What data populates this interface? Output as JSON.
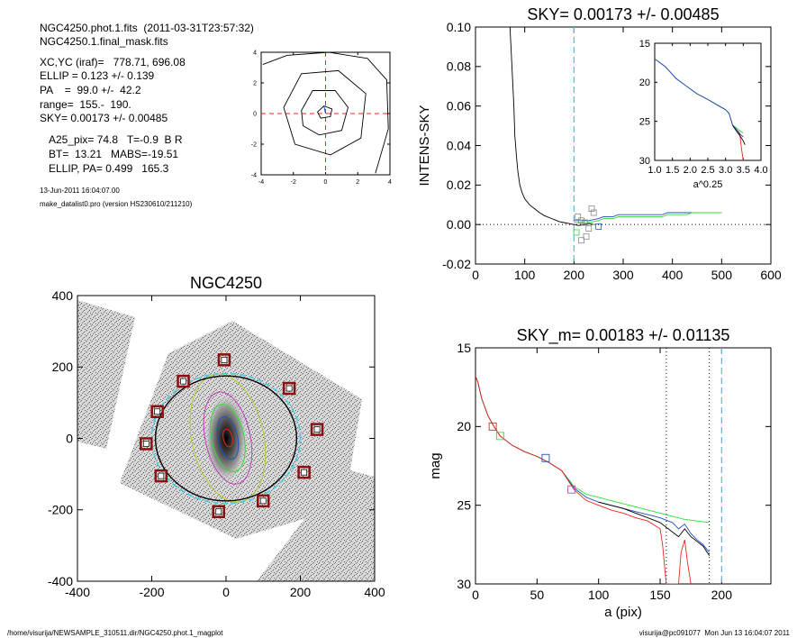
{
  "info": {
    "header_line1": "NGC4250.phot.1.fits  (2011-03-31T23:57:32)",
    "header_line2": "NGC4250.1.final_mask.fits",
    "center": "XC,YC (iraf)=   778.71, 696.08",
    "ellip": "ELLIP = 0.123 +/- 0.139",
    "pa": "PA    =  99.0 +/-  42.2",
    "range": "range=  155.-  190.",
    "sky": "SKY= 0.00173 +/- 0.00485",
    "a25": "A25_pix= 74.8   T=-0.9  B R",
    "bt": "BT=  13.21   MABS=-19.51",
    "ellip_pa": "ELLIP, PA= 0.499   165.3",
    "date": "13-Jun-2011 16:04:07.00",
    "program": "make_datalist0.pro (version HS230610/211210)"
  },
  "footer": {
    "path": "/home/visurija/NEWSAMPLE_310511.dir/NGC4250.phot.1_magplot",
    "user_date": "visurija@pc091077  Mon Jun 13 16:04:07 2011"
  },
  "colors": {
    "red": "#e8261c",
    "green": "#35d935",
    "blue": "#1f4fbf",
    "cyan": "#3ecfe0",
    "dark_red": "#8b1010",
    "magenta": "#c040c0",
    "yellow_green": "#b5cc33",
    "gray": "#888888"
  },
  "chart_data": [
    {
      "id": "contour_plot",
      "type": "contour",
      "title": "",
      "xlabel": "",
      "ylabel": "",
      "xlim": [
        -4,
        4
      ],
      "ylim": [
        -4,
        4
      ],
      "xticks": [
        -4,
        -2,
        0,
        2,
        4
      ],
      "yticks": [
        -4,
        -2,
        0,
        2,
        4
      ],
      "crosshair": {
        "x": 0,
        "y": 0,
        "color": "red-dashed"
      },
      "contours": [
        {
          "points": [
            [
              -0.5,
              0.1
            ],
            [
              -0.1,
              0.5
            ],
            [
              0.4,
              0.3
            ],
            [
              0.3,
              -0.2
            ],
            [
              -0.3,
              -0.3
            ]
          ]
        },
        {
          "points": [
            [
              -1.5,
              0.2
            ],
            [
              -0.8,
              1.5
            ],
            [
              0.6,
              1.5
            ],
            [
              1.4,
              0.4
            ],
            [
              1.0,
              -1.1
            ],
            [
              -0.4,
              -1.4
            ],
            [
              -1.4,
              -0.8
            ]
          ]
        },
        {
          "points": [
            [
              -2.6,
              0.4
            ],
            [
              -1.5,
              2.6
            ],
            [
              0.8,
              2.8
            ],
            [
              2.5,
              1.3
            ],
            [
              2.2,
              -1.6
            ],
            [
              0.3,
              -2.7
            ],
            [
              -1.9,
              -2.0
            ]
          ]
        },
        {
          "points": [
            [
              -3.9,
              3.2
            ],
            [
              -2.4,
              3.8
            ],
            [
              0.2,
              4.0
            ],
            [
              2.6,
              3.6
            ],
            [
              3.8,
              2.2
            ],
            [
              3.9,
              -1.0
            ],
            [
              3.1,
              -3.9
            ]
          ]
        }
      ]
    },
    {
      "id": "sky_profile",
      "type": "line",
      "title": "SKY= 0.00173 +/- 0.00485",
      "xlabel": "",
      "ylabel": "INTENS-SKY",
      "xlim": [
        0,
        600
      ],
      "ylim": [
        -0.02,
        0.1
      ],
      "xticks": [
        0,
        100,
        200,
        300,
        400,
        500,
        600
      ],
      "yticks": [
        "-0.02",
        "0.00",
        "0.02",
        "0.04",
        "0.06",
        "0.08",
        "0.10"
      ],
      "vline": {
        "x": 200,
        "style": "cyan-dashed"
      },
      "hline": {
        "y": 0,
        "style": "dotted"
      },
      "series": [
        {
          "color": "black",
          "x": [
            70,
            72,
            75,
            78,
            80,
            83,
            86,
            90,
            95,
            100,
            110,
            120,
            130,
            140,
            150,
            160,
            170,
            180,
            190,
            200,
            210,
            220,
            230,
            240
          ],
          "y": [
            0.1,
            0.09,
            0.075,
            0.06,
            0.045,
            0.035,
            0.027,
            0.02,
            0.016,
            0.013,
            0.01,
            0.008,
            0.006,
            0.0045,
            0.0035,
            0.0025,
            0.0015,
            0.001,
            0.0005,
            0.0,
            -0.0005,
            0.0,
            0.0005,
            0.0
          ]
        },
        {
          "color": "blue",
          "x": [
            200,
            230,
            250,
            260,
            280,
            290,
            330,
            340,
            380,
            390,
            430,
            440,
            480,
            490,
            500
          ],
          "y": [
            0.002,
            0.002,
            0.003,
            0.004,
            0.004,
            0.005,
            0.005,
            0.005,
            0.005,
            0.006,
            0.006,
            0.006,
            0.006,
            0.006,
            0.006
          ]
        },
        {
          "color": "green",
          "x": [
            200,
            230,
            250,
            260,
            280,
            290,
            330,
            340,
            380,
            390,
            430,
            440,
            480,
            490,
            500
          ],
          "y": [
            0.001,
            0.001,
            0.002,
            0.003,
            0.003,
            0.004,
            0.004,
            0.004,
            0.004,
            0.005,
            0.005,
            0.006,
            0.006,
            0.006,
            0.006
          ]
        }
      ],
      "markers": [
        {
          "x": 208,
          "y": 0.004,
          "color": "gray"
        },
        {
          "x": 215,
          "y": 0.002,
          "color": "gray"
        },
        {
          "x": 222,
          "y": 0.001,
          "color": "gray"
        },
        {
          "x": 230,
          "y": -0.002,
          "color": "gray"
        },
        {
          "x": 236,
          "y": 0.008,
          "color": "gray"
        },
        {
          "x": 240,
          "y": 0.006,
          "color": "gray"
        },
        {
          "x": 205,
          "y": -0.004,
          "color": "green"
        },
        {
          "x": 225,
          "y": -0.006,
          "color": "gray"
        },
        {
          "x": 215,
          "y": -0.008,
          "color": "gray"
        },
        {
          "x": 250,
          "y": -0.001,
          "color": "blue"
        }
      ]
    },
    {
      "id": "sky_inset",
      "type": "line",
      "title": "",
      "xlabel": "a^0.25",
      "ylabel": "",
      "xlim": [
        1.0,
        4.0
      ],
      "ylim": [
        15,
        30
      ],
      "xticks": [
        "1.0",
        "1.5",
        "2.0",
        "2.5",
        "3.0",
        "3.5",
        "4.0"
      ],
      "yticks": [
        15,
        20,
        25,
        30
      ],
      "series": [
        {
          "color": "red",
          "x": [
            1.0,
            1.3,
            1.6,
            1.9,
            2.2,
            2.5,
            2.8,
            3.0,
            3.1,
            3.2,
            3.3,
            3.4,
            3.45,
            3.5
          ],
          "y": [
            17.0,
            18.0,
            19.5,
            20.5,
            21.5,
            22.2,
            23.0,
            23.5,
            24.0,
            25.5,
            26.0,
            26.5,
            28.5,
            30.0
          ]
        },
        {
          "color": "green",
          "x": [
            1.0,
            1.3,
            1.6,
            1.9,
            2.2,
            2.5,
            2.8,
            3.0,
            3.1,
            3.2,
            3.3,
            3.4,
            3.5
          ],
          "y": [
            17.0,
            18.0,
            19.5,
            20.5,
            21.5,
            22.2,
            23.0,
            23.5,
            24.0,
            25.5,
            25.8,
            26.2,
            26.5
          ]
        },
        {
          "color": "blue",
          "x": [
            1.0,
            1.3,
            1.6,
            1.9,
            2.2,
            2.5,
            2.8,
            3.0,
            3.1,
            3.2,
            3.3,
            3.4,
            3.5
          ],
          "y": [
            17.0,
            18.0,
            19.5,
            20.5,
            21.5,
            22.2,
            23.0,
            23.5,
            24.0,
            25.5,
            26.0,
            26.6,
            27.0
          ]
        },
        {
          "color": "black",
          "x": [
            3.2,
            3.3,
            3.4,
            3.5,
            3.55
          ],
          "y": [
            25.5,
            26.2,
            26.8,
            27.5,
            28.0
          ]
        }
      ]
    },
    {
      "id": "galaxy_image",
      "type": "image",
      "title": "NGC4250",
      "xlabel": "",
      "ylabel": "",
      "xlim": [
        -400,
        400
      ],
      "ylim": [
        -400,
        400
      ],
      "xticks": [
        -400,
        -200,
        0,
        200,
        400
      ],
      "yticks": [
        -400,
        -200,
        0,
        200,
        400
      ],
      "sky_boxes": [
        [
          -5,
          220
        ],
        [
          -115,
          160
        ],
        [
          170,
          140
        ],
        [
          -185,
          75
        ],
        [
          245,
          25
        ],
        [
          -215,
          -15
        ],
        [
          210,
          -95
        ],
        [
          -175,
          -105
        ],
        [
          100,
          -175
        ],
        [
          -20,
          -205
        ]
      ],
      "ellipses": [
        {
          "a": 190,
          "b": 175,
          "color": "black"
        },
        {
          "a": 200,
          "b": 182,
          "color": "cyan-dashed"
        }
      ]
    },
    {
      "id": "mag_profile",
      "type": "line",
      "title": "SKY_m=  0.00183 +/- 0.01135",
      "xlabel": "a (pix)",
      "ylabel": "mag",
      "xlim": [
        0,
        240
      ],
      "ylim": [
        15,
        30
      ],
      "xticks": [
        0,
        50,
        100,
        150,
        200
      ],
      "yticks": [
        15,
        20,
        25,
        30
      ],
      "vlines": [
        {
          "x": 155,
          "style": "dotted"
        },
        {
          "x": 190,
          "style": "dotted"
        },
        {
          "x": 200,
          "style": "cyan-dashed"
        }
      ],
      "series": [
        {
          "color": "green",
          "x": [
            0,
            2,
            5,
            10,
            15,
            20,
            30,
            40,
            50,
            60,
            70,
            80,
            90,
            100,
            110,
            120,
            130,
            140,
            150,
            160,
            170,
            180,
            190
          ],
          "y": [
            16.8,
            17.2,
            18.2,
            19.3,
            20.0,
            20.6,
            21.2,
            21.6,
            21.9,
            22.3,
            22.8,
            23.8,
            24.3,
            24.5,
            24.7,
            24.9,
            25.1,
            25.3,
            25.5,
            25.7,
            25.9,
            26.0,
            26.1
          ]
        },
        {
          "color": "blue",
          "x": [
            0,
            2,
            5,
            10,
            15,
            20,
            30,
            40,
            50,
            60,
            70,
            80,
            90,
            100,
            110,
            120,
            130,
            140,
            150,
            160,
            165,
            170,
            175,
            180,
            185,
            190
          ],
          "y": [
            16.8,
            17.2,
            18.2,
            19.3,
            20.0,
            20.6,
            21.2,
            21.6,
            21.9,
            22.3,
            22.8,
            23.9,
            24.5,
            24.8,
            25.0,
            25.2,
            25.4,
            25.6,
            25.8,
            26.1,
            26.5,
            26.2,
            26.8,
            27.2,
            27.5,
            28.0
          ]
        },
        {
          "color": "black",
          "x": [
            100,
            110,
            120,
            130,
            140,
            150,
            155,
            160,
            165,
            170,
            175,
            180,
            185,
            190
          ],
          "y": [
            24.8,
            25.0,
            25.2,
            25.5,
            25.8,
            26.1,
            26.4,
            26.7,
            27.0,
            26.5,
            27.0,
            27.3,
            27.6,
            28.2
          ]
        },
        {
          "color": "red",
          "x": [
            0,
            2,
            5,
            10,
            15,
            20,
            30,
            40,
            50,
            60,
            70,
            80,
            90,
            100,
            110,
            120,
            130,
            140,
            150,
            152,
            155,
            157,
            160,
            165,
            167,
            170,
            172,
            175
          ],
          "y": [
            16.8,
            17.2,
            18.2,
            19.3,
            20.0,
            20.6,
            21.2,
            21.6,
            21.9,
            22.3,
            22.8,
            24.0,
            24.7,
            25.0,
            25.3,
            25.5,
            25.8,
            26.0,
            26.5,
            27.5,
            30.0,
            30.0,
            30.0,
            30.0,
            28.0,
            27.2,
            28.5,
            30.0
          ]
        }
      ],
      "markers": [
        {
          "x": 14,
          "y": 20.0,
          "color": "red"
        },
        {
          "x": 20,
          "y": 20.6,
          "color": "green"
        },
        {
          "x": 57,
          "y": 22.0,
          "color": "blue"
        },
        {
          "x": 78,
          "y": 24.0,
          "color": "magenta"
        }
      ]
    }
  ]
}
